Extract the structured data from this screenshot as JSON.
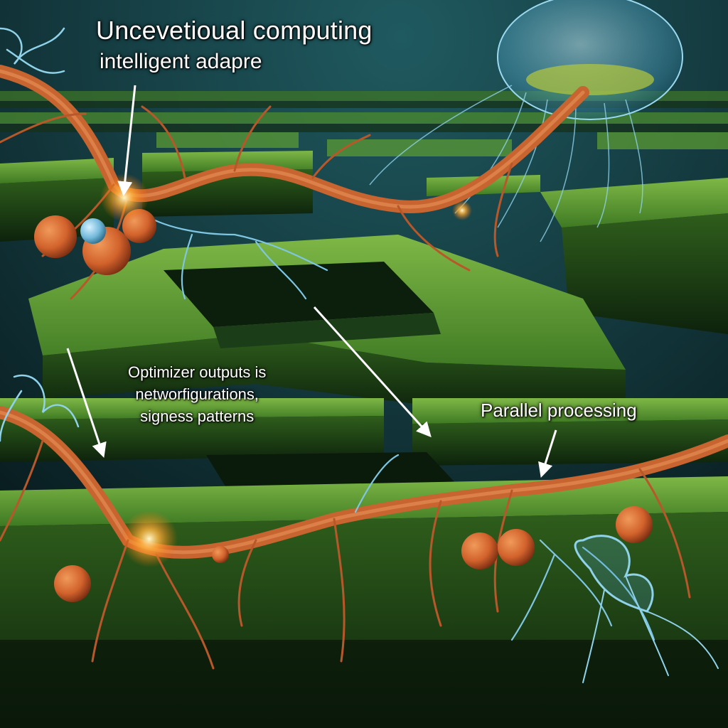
{
  "labels": {
    "title": "Uncevetioual computing",
    "subtitle": "intelligent adapre",
    "optimizer_line1": "Optimizer outputs is",
    "optimizer_line2": "networfigurations,",
    "optimizer_line3": "signess patterns",
    "parallel": "Parallel processing"
  },
  "colors": {
    "background": "#0f2a2e",
    "hedge": "#4f8a2c",
    "hedge_shadow": "#123014",
    "neuron_orange": "#c8642f",
    "neuron_blue": "#7ecbe8",
    "label_text": "#ffffff"
  }
}
